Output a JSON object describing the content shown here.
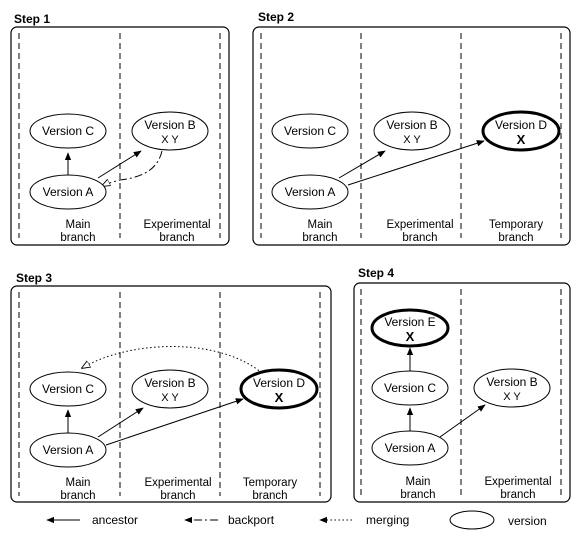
{
  "steps": [
    {
      "title": "Step 1",
      "lanes": [
        {
          "line1": "Main",
          "line2": "branch"
        },
        {
          "line1": "Experimental",
          "line2": "branch"
        }
      ],
      "nodes": [
        {
          "label": "Version C",
          "sub": ""
        },
        {
          "label": "Version B",
          "sub": "X Y"
        },
        {
          "label": "Version A",
          "sub": ""
        }
      ]
    },
    {
      "title": "Step 2",
      "lanes": [
        {
          "line1": "Main",
          "line2": "branch"
        },
        {
          "line1": "Experimental",
          "line2": "branch"
        },
        {
          "line1": "Temporary",
          "line2": "branch"
        }
      ],
      "nodes": [
        {
          "label": "Version C",
          "sub": ""
        },
        {
          "label": "Version B",
          "sub": "X Y"
        },
        {
          "label": "Version D",
          "sub": "X"
        },
        {
          "label": "Version A",
          "sub": ""
        }
      ]
    },
    {
      "title": "Step 3",
      "lanes": [
        {
          "line1": "Main",
          "line2": "branch"
        },
        {
          "line1": "Experimental",
          "line2": "branch"
        },
        {
          "line1": "Temporary",
          "line2": "branch"
        }
      ],
      "nodes": [
        {
          "label": "Version C",
          "sub": ""
        },
        {
          "label": "Version B",
          "sub": "X Y"
        },
        {
          "label": "Version D",
          "sub": "X"
        },
        {
          "label": "Version A",
          "sub": ""
        }
      ]
    },
    {
      "title": "Step 4",
      "lanes": [
        {
          "line1": "Main",
          "line2": "branch"
        },
        {
          "line1": "Experimental",
          "line2": "branch"
        }
      ],
      "nodes": [
        {
          "label": "Version E",
          "sub": "X"
        },
        {
          "label": "Version C",
          "sub": ""
        },
        {
          "label": "Version B",
          "sub": "X Y"
        },
        {
          "label": "Version A",
          "sub": ""
        }
      ]
    }
  ],
  "legend": {
    "ancestor": "ancestor",
    "backport": "backport",
    "merging": "merging",
    "version": "version"
  }
}
